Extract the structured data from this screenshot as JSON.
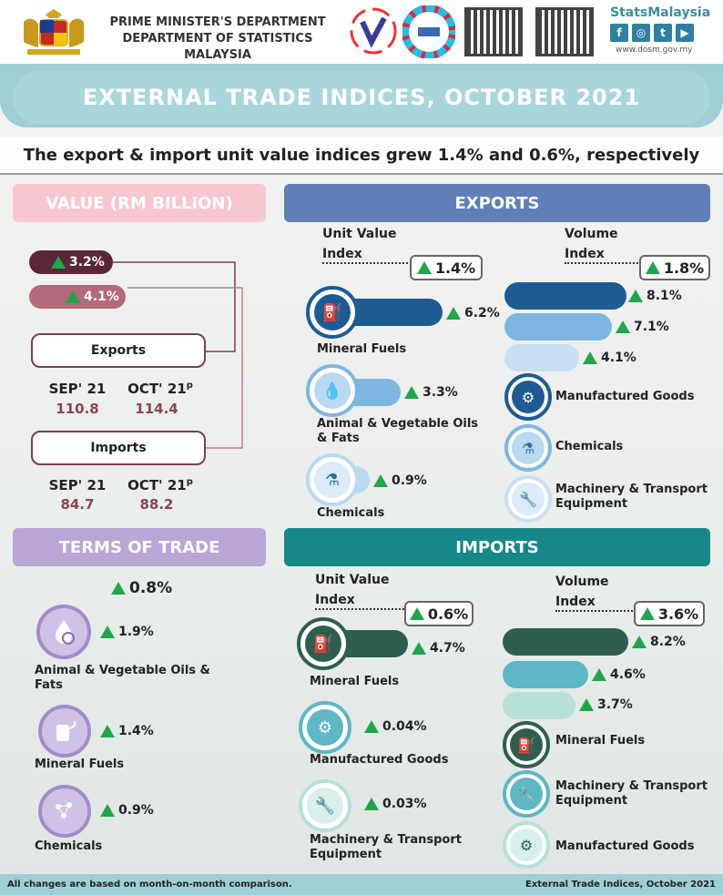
{
  "header": {
    "dept_line1": "PRIME MINISTER'S DEPARTMENT",
    "dept_line2": "DEPARTMENT OF STATISTICS MALAYSIA",
    "brand": "StatsMalaysia",
    "url": "www.dosm.gov.my",
    "social": [
      "f",
      "◎",
      "t",
      "▶"
    ]
  },
  "title": "EXTERNAL TRADE INDICES, OCTOBER 2021",
  "subtitle": "The export & import unit value indices grew 1.4% and 0.6%, respectively",
  "value": {
    "heading": "VALUE (RM BILLION)",
    "exports_change": "3.2%",
    "imports_change": "4.1%",
    "exports_label": "Exports",
    "imports_label": "Imports",
    "sep_label": "SEP' 21",
    "oct_label": "OCT' 21",
    "oct_sup": "p",
    "exports_sep": "110.8",
    "exports_oct": "114.4",
    "imports_sep": "84.7",
    "imports_oct": "88.2"
  },
  "tot": {
    "heading": "TERMS OF TRADE",
    "total": "0.8%",
    "items": [
      {
        "label": "Animal & Vegetable Oils & Fats",
        "change": "1.9%"
      },
      {
        "label": "Mineral Fuels",
        "change": "1.4%"
      },
      {
        "label": "Chemicals",
        "change": "0.9%"
      }
    ]
  },
  "exports": {
    "heading": "EXPORTS",
    "uvi_label_1": "Unit Value",
    "uvi_label_2": "Index",
    "uvi": "1.4%",
    "vol_label_1": "Volume",
    "vol_label_2": "Index",
    "vol": "1.8%",
    "uvi_items": [
      {
        "label": "Mineral Fuels",
        "change": "6.2%"
      },
      {
        "label": "Animal & Vegetable Oils & Fats",
        "change": "3.3%"
      },
      {
        "label": "Chemicals",
        "change": "0.9%"
      }
    ],
    "vol_items": [
      {
        "label": "Manufactured Goods",
        "change": "8.1%"
      },
      {
        "label": "Chemicals",
        "change": "7.1%"
      },
      {
        "label": "Machinery & Transport Equipment",
        "change": "4.1%"
      }
    ]
  },
  "imports": {
    "heading": "IMPORTS",
    "uvi_label_1": "Unit Value",
    "uvi_label_2": "Index",
    "uvi": "0.6%",
    "vol_label_1": "Volume",
    "vol_label_2": "Index",
    "vol": "3.6%",
    "uvi_items": [
      {
        "label": "Mineral Fuels",
        "change": "4.7%"
      },
      {
        "label": "Manufactured Goods",
        "change": "0.04%"
      },
      {
        "label": "Machinery & Transport Equipment",
        "change": "0.03%"
      }
    ],
    "vol_items": [
      {
        "label": "Mineral Fuels",
        "change": "8.2%"
      },
      {
        "label": "Machinery & Transport Equipment",
        "change": "4.6%"
      },
      {
        "label": "Manufactured Goods",
        "change": "3.7%"
      }
    ]
  },
  "footer": {
    "left": "All changes are based on month-on-month comparison.",
    "right": "External Trade Indices, October 2021"
  },
  "colors": {
    "exports": "#5f7fb6",
    "imports": "#17888a",
    "value": "#f6c7cf",
    "tot": "#b9a6d6"
  }
}
